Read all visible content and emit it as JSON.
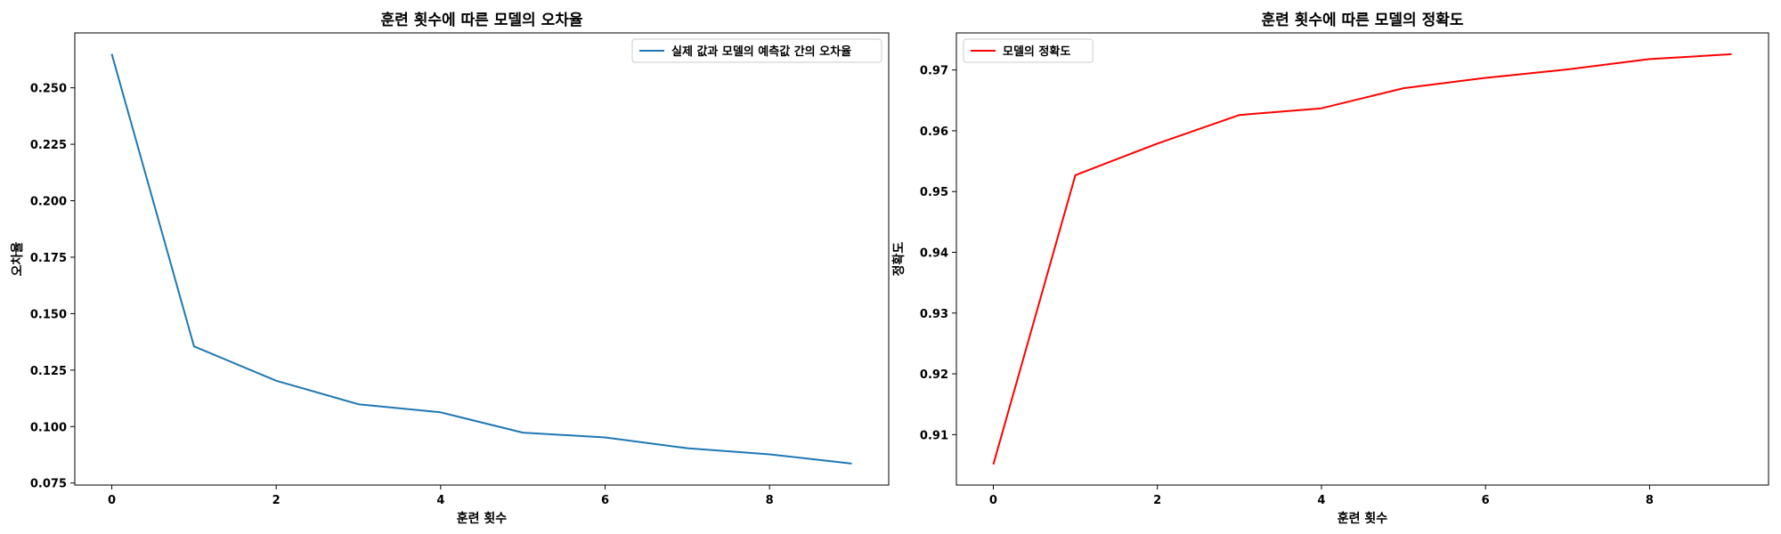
{
  "chart_data": [
    {
      "type": "line",
      "title": "훈련 횟수에 따른 모델의 오차율",
      "xlabel": "훈련 횟수",
      "ylabel": "오차율",
      "xlim": [
        -0.45,
        9.45
      ],
      "ylim": [
        0.0741,
        0.2743
      ],
      "xticks": [
        0,
        2,
        4,
        6,
        8
      ],
      "xtick_labels": [
        "0",
        "2",
        "4",
        "6",
        "8"
      ],
      "yticks": [
        0.075,
        0.1,
        0.125,
        0.15,
        0.175,
        0.2,
        0.225,
        0.25
      ],
      "ytick_labels": [
        "0.075",
        "0.100",
        "0.125",
        "0.150",
        "0.175",
        "0.200",
        "0.225",
        "0.250"
      ],
      "legend": "upper right",
      "grid": false,
      "series": [
        {
          "name": "실제 값과 모델의 예측값 간의 오차율",
          "color": "#1f77b4",
          "x": [
            0,
            1,
            2,
            3,
            4,
            5,
            6,
            7,
            8,
            9
          ],
          "y": [
            0.265,
            0.1355,
            0.1203,
            0.1099,
            0.1063,
            0.0973,
            0.0952,
            0.0904,
            0.0877,
            0.0836
          ]
        }
      ]
    },
    {
      "type": "line",
      "title": "훈련 횟수에 따른 모델의 정확도",
      "xlabel": "훈련 횟수",
      "ylabel": "정확도",
      "xlim": [
        -0.45,
        9.45
      ],
      "ylim": [
        0.9017,
        0.9761
      ],
      "xticks": [
        0,
        2,
        4,
        6,
        8
      ],
      "xtick_labels": [
        "0",
        "2",
        "4",
        "6",
        "8"
      ],
      "yticks": [
        0.91,
        0.92,
        0.93,
        0.94,
        0.95,
        0.96,
        0.97
      ],
      "ytick_labels": [
        "0.91",
        "0.92",
        "0.93",
        "0.94",
        "0.95",
        "0.96",
        "0.97"
      ],
      "legend": "upper left",
      "grid": false,
      "series": [
        {
          "name": "모델의 정확도",
          "color": "#ff0000",
          "x": [
            0,
            1,
            2,
            3,
            4,
            5,
            6,
            7,
            8,
            9
          ],
          "y": [
            0.9051,
            0.9527,
            0.9579,
            0.9626,
            0.9637,
            0.967,
            0.9687,
            0.9701,
            0.9718,
            0.9726
          ]
        }
      ]
    }
  ]
}
